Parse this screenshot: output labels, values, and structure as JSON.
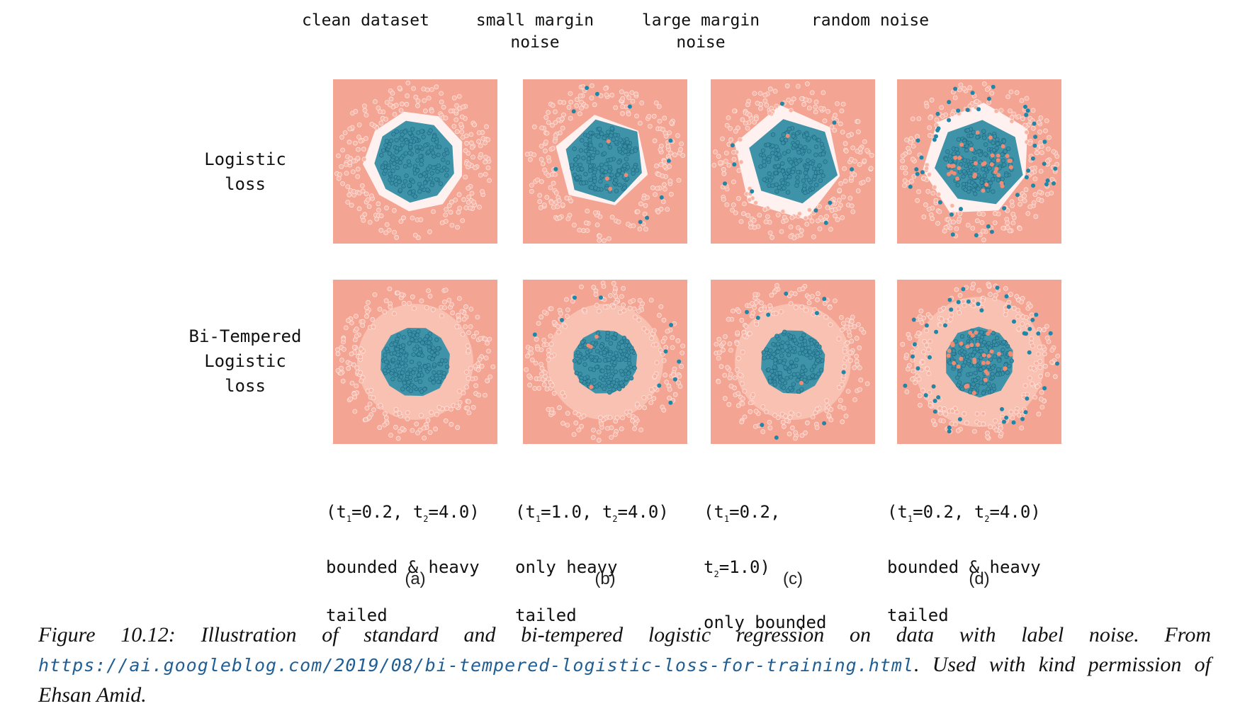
{
  "columns": [
    {
      "heading": "clean dataset",
      "letter": "(a)",
      "params_line1": "(t1=0.2, t2=4.0)",
      "params_line2": "bounded & heavy",
      "params_line3": "tailed"
    },
    {
      "heading": "small margin\nnoise",
      "letter": "(b)",
      "params_line1": "(t1=1.0, t2=4.0)",
      "params_line2": "only heavy",
      "params_line3": "tailed"
    },
    {
      "heading": "large margin\nnoise",
      "letter": "(c)",
      "params_line1": "(t1=0.2,",
      "params_line2": "t2=1.0)",
      "params_line3": "only bounded"
    },
    {
      "heading": "random noise",
      "letter": "(d)",
      "params_line1": "(t1=0.2, t2=4.0)",
      "params_line2": "bounded & heavy",
      "params_line3": "tailed"
    }
  ],
  "rows": [
    {
      "heading": "Logistic\nloss"
    },
    {
      "heading": "Bi-Tempered\nLogistic\nloss"
    }
  ],
  "colors": {
    "outer_class": "#f4a493",
    "inner_class": "#3f93a9",
    "inner_dot_edge": "#1c6a80",
    "boundary_white": "#ffffff"
  },
  "caption": {
    "text_before_url": "Figure 10.12: Illustration of standard and bi-tempered logistic regression on data with label noise. From ",
    "url": "https://ai.googleblog.com/2019/08/bi-tempered-logistic-loss-for-training.html",
    "text_after_url": ". Used with kind permission of Ehsan Amid."
  }
}
